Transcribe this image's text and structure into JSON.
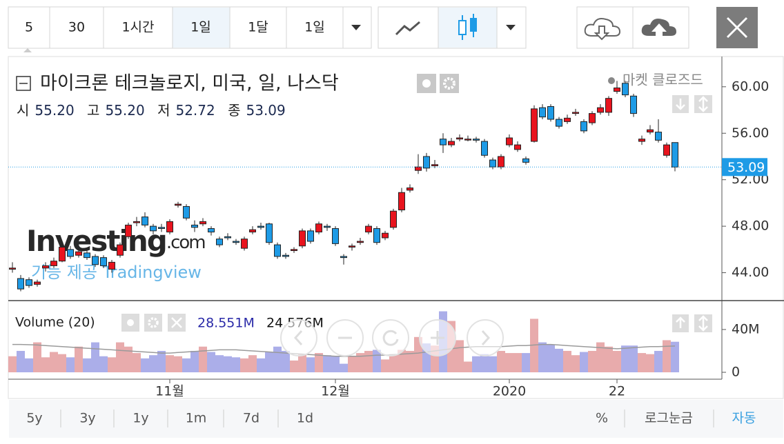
{
  "toolbar": {
    "intervals": [
      "5",
      "30",
      "1시간",
      "1일",
      "1달",
      "1일"
    ],
    "active": 3
  },
  "chart_data": {
    "type": "candlestick",
    "title": "마이크론 테크놀로지, 미국, 일, 나스닥",
    "status": "마켓 클로즈드",
    "ohlc_readout": [
      {
        "name": "시",
        "value": "55.20"
      },
      {
        "name": "고",
        "value": "55.20"
      },
      {
        "name": "저",
        "value": "52.72"
      },
      {
        "name": "종",
        "value": "53.09"
      }
    ],
    "categories": [
      null,
      null,
      null,
      null,
      null,
      null,
      null,
      null,
      null,
      null,
      null,
      null,
      null,
      null,
      null,
      null,
      null,
      null,
      null,
      "11월",
      null,
      null,
      null,
      null,
      null,
      null,
      null,
      null,
      null,
      null,
      null,
      null,
      null,
      null,
      null,
      null,
      null,
      null,
      null,
      "12월",
      null,
      null,
      null,
      null,
      null,
      null,
      null,
      null,
      null,
      null,
      null,
      null,
      null,
      null,
      null,
      null,
      null,
      null,
      null,
      null,
      "2020",
      null,
      null,
      null,
      null,
      null,
      null,
      null,
      null,
      null,
      null,
      null,
      null,
      "22",
      null,
      null,
      null,
      null,
      null,
      null,
      null
    ],
    "open": [
      44.3,
      43.5,
      43.4,
      43.0,
      44.4,
      44.6,
      45.0,
      46.0,
      45.5,
      45.7,
      45.4,
      45.3,
      44.3,
      45.5,
      47.1,
      48.3,
      48.8,
      48.0,
      47.9,
      47.5,
      49.8,
      49.7,
      48.1,
      48.2,
      47.8,
      46.9,
      47.1,
      46.7,
      46.1,
      47.5,
      48.0,
      48.2,
      46.4,
      45.5,
      45.9,
      46.3,
      47.6,
      47.5,
      48.0,
      47.8,
      45.4,
      46.2,
      46.6,
      47.5,
      47.8,
      47.0,
      47.9,
      49.4,
      51.1,
      52.8,
      54.0,
      53.2,
      55.5,
      55.0,
      55.5,
      55.5,
      55.5,
      55.3,
      53.7,
      53.1,
      55.0,
      54.6,
      53.8,
      55.3,
      58.2,
      58.3,
      57.2,
      57.0,
      57.7,
      57.0,
      56.9,
      57.8,
      57.8,
      59.6,
      60.3,
      59.2,
      55.3,
      56.1,
      56.1,
      54.1,
      55.2
    ],
    "high": [
      44.9,
      43.8,
      43.6,
      43.4,
      44.9,
      45.3,
      46.4,
      46.3,
      46.0,
      45.9,
      45.6,
      45.5,
      45.1,
      46.6,
      48.3,
      48.8,
      49.2,
      48.2,
      48.2,
      48.6,
      50.1,
      49.9,
      48.5,
      48.7,
      48.0,
      47.1,
      47.4,
      46.9,
      47.1,
      48.0,
      48.3,
      48.3,
      46.6,
      45.7,
      46.2,
      47.8,
      47.8,
      48.4,
      48.2,
      48.0,
      45.6,
      46.5,
      47.0,
      48.2,
      48.0,
      47.6,
      49.5,
      51.3,
      51.6,
      54.2,
      54.3,
      53.7,
      56.0,
      55.6,
      55.9,
      55.8,
      55.7,
      55.5,
      53.9,
      54.2,
      55.9,
      55.3,
      54.0,
      58.4,
      58.5,
      58.5,
      57.4,
      57.6,
      58.1,
      57.2,
      57.9,
      58.5,
      59.2,
      60.5,
      60.5,
      59.4,
      55.8,
      56.7,
      57.2,
      55.2,
      55.2
    ],
    "low": [
      44.0,
      42.4,
      42.7,
      42.8,
      44.1,
      44.4,
      44.9,
      45.2,
      45.3,
      45.1,
      44.5,
      44.4,
      44.0,
      45.3,
      46.9,
      48.0,
      47.9,
      47.3,
      47.5,
      47.3,
      49.6,
      48.5,
      47.5,
      48.0,
      47.2,
      46.2,
      46.8,
      46.4,
      45.9,
      47.3,
      47.7,
      46.4,
      45.2,
      45.2,
      45.7,
      46.1,
      46.5,
      47.3,
      47.6,
      46.3,
      44.7,
      45.9,
      46.4,
      47.3,
      46.4,
      46.8,
      47.7,
      49.2,
      50.9,
      52.5,
      52.7,
      53.0,
      54.3,
      54.8,
      55.3,
      55.3,
      55.2,
      53.9,
      52.9,
      52.9,
      54.8,
      54.4,
      53.3,
      55.2,
      57.2,
      57.0,
      56.4,
      56.8,
      57.5,
      56.0,
      56.7,
      57.6,
      57.5,
      59.4,
      59.1,
      57.4,
      55.0,
      55.9,
      55.2,
      53.9,
      52.72
    ],
    "close": [
      44.4,
      42.6,
      42.9,
      43.2,
      44.6,
      45.0,
      46.2,
      45.4,
      45.8,
      45.3,
      44.7,
      44.6,
      44.9,
      46.4,
      48.1,
      48.4,
      48.1,
      47.6,
      47.8,
      48.4,
      49.9,
      48.7,
      47.9,
      48.4,
      47.5,
      46.4,
      47.0,
      46.6,
      46.9,
      47.7,
      47.9,
      46.6,
      45.4,
      45.4,
      46.0,
      47.6,
      46.7,
      48.2,
      47.9,
      46.5,
      45.3,
      46.3,
      46.7,
      48.0,
      46.6,
      47.4,
      49.3,
      50.9,
      51.3,
      53.1,
      53.0,
      53.3,
      55.0,
      55.3,
      55.6,
      55.5,
      55.4,
      54.1,
      53.1,
      54.0,
      55.6,
      55.0,
      53.5,
      58.1,
      57.4,
      57.2,
      56.6,
      57.3,
      57.8,
      56.2,
      57.7,
      58.2,
      59.0,
      59.9,
      59.3,
      57.7,
      55.5,
      56.3,
      55.4,
      55.0,
      53.09
    ],
    "up_color": "#e8141e",
    "down_color": "#1e9be6",
    "ylim": [
      41.6,
      62.6
    ],
    "yticks": [
      {
        "value": 44,
        "label": "44.00"
      },
      {
        "value": 48,
        "label": "48.00"
      },
      {
        "value": 52,
        "label": "52.00"
      },
      {
        "value": 56,
        "label": "56.00"
      },
      {
        "value": 60,
        "label": "60.00"
      }
    ],
    "last_price": {
      "value": 53.09,
      "label": "53.09"
    },
    "volume": {
      "name": "Volume (20)",
      "values": [
        15,
        20,
        13,
        28,
        14,
        19,
        17,
        14,
        24,
        13,
        28,
        15,
        14,
        28,
        24,
        18,
        13,
        16,
        20,
        16,
        15,
        13,
        20,
        24,
        19,
        16,
        15,
        14,
        13,
        16,
        13,
        19,
        24,
        20,
        11,
        17,
        14,
        18,
        16,
        15,
        8,
        15,
        18,
        20,
        21,
        12,
        17,
        21,
        20,
        33,
        27,
        25,
        57,
        48,
        30,
        10,
        15,
        17,
        15,
        20,
        18,
        18,
        18,
        50,
        28,
        26,
        22,
        20,
        16,
        19,
        20,
        28,
        24,
        20,
        25,
        25,
        18,
        17,
        20,
        30,
        28.551
      ],
      "ma": [
        26,
        26,
        25.8,
        25.5,
        25,
        24.5,
        24,
        23.5,
        23,
        22.5,
        22,
        21.5,
        21,
        20.5,
        20,
        19.5,
        19,
        18.5,
        18,
        18,
        18.5,
        19,
        19.5,
        20,
        20.5,
        21,
        21,
        21,
        20.5,
        20,
        19.5,
        19,
        18.5,
        18,
        17.5,
        17,
        16.5,
        16,
        15.5,
        15,
        15,
        15,
        15,
        15.5,
        16,
        16,
        16.5,
        17,
        17.5,
        18,
        19,
        20,
        21,
        22,
        23,
        23.5,
        24,
        24,
        24,
        24,
        24.5,
        25,
        25,
        25.5,
        26,
        26,
        25.5,
        25,
        24.5,
        24,
        23.5,
        23,
        22.5,
        22,
        22.5,
        23,
        23.5,
        24,
        24,
        24.3,
        24.576
      ],
      "readouts": [
        {
          "value": 28.551,
          "label": "28.551M"
        },
        {
          "value": 24.576,
          "label": "24.576M"
        }
      ],
      "ylim": [
        0,
        58
      ],
      "yticks": [
        0,
        {
          "value": 40,
          "label": "40M"
        }
      ],
      "up_color": "#e7a6a8",
      "down_color": "#a7aae8",
      "ma_color": "#9a9a9a"
    }
  },
  "watermark": {
    "brand": "Investing",
    "suffix": ".com",
    "credit": "기능 제공 Tradingview"
  },
  "footer": {
    "ranges": [
      "5y",
      "3y",
      "1y",
      "1m",
      "7d",
      "1d"
    ],
    "options": [
      "%",
      "로그눈금",
      "자동"
    ]
  }
}
